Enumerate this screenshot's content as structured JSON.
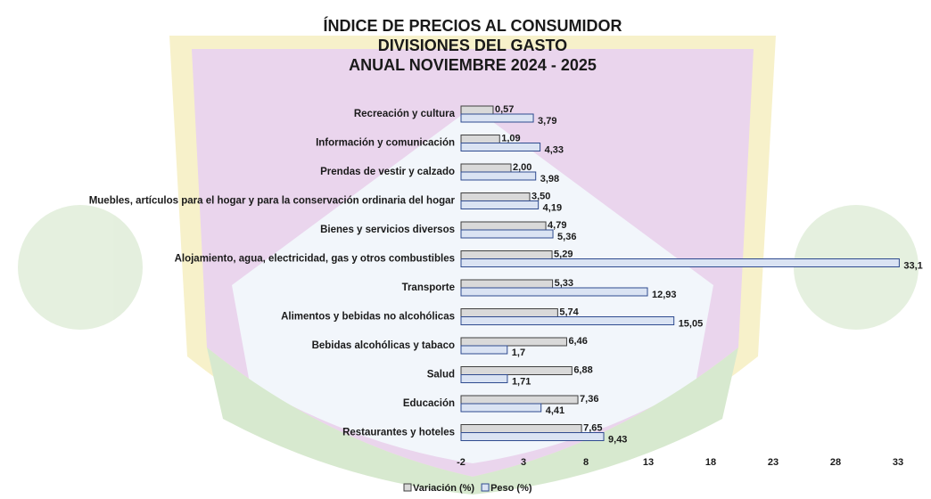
{
  "chart_data": {
    "type": "hbar",
    "title": [
      "ÍNDICE DE PRECIOS AL CONSUMIDOR",
      "DIVISIONES DEL GASTO",
      "ANUAL NOVIEMBRE 2024 - 2025"
    ],
    "categories": [
      "Recreación y cultura",
      "Información y comunicación",
      "Prendas de vestir y calzado",
      "Muebles, artículos para el hogar y para la conservación ordinaria del hogar",
      "Bienes y servicios diversos",
      "Alojamiento, agua, electricidad, gas y otros combustibles",
      "Transporte",
      "Alimentos y bebidas no alcohólicas",
      "Bebidas alcohólicas y tabaco",
      "Salud",
      "Educación",
      "Restaurantes y hoteles"
    ],
    "series": [
      {
        "name": "Variación (%)",
        "color": "#d9d9d9",
        "stroke": "#404040",
        "values": [
          0.57,
          1.09,
          2.0,
          3.5,
          4.79,
          5.29,
          5.33,
          5.74,
          6.46,
          6.88,
          7.36,
          7.65
        ],
        "value_labels": [
          "0,57",
          "1,09",
          "2,00",
          "3,50",
          "4,79",
          "5,29",
          "5,33",
          "5,74",
          "6,46",
          "6,88",
          "7,36",
          "7,65"
        ]
      },
      {
        "name": "Peso (%)",
        "color": "#dae3f3",
        "stroke": "#2f4b8f",
        "values": [
          3.79,
          4.33,
          3.98,
          4.19,
          5.36,
          33.1,
          12.93,
          15.05,
          1.7,
          1.71,
          4.41,
          9.43
        ],
        "value_labels": [
          "3,79",
          "4,33",
          "3,98",
          "4,19",
          "5,36",
          "33,1",
          "12,93",
          "15,05",
          "1,7",
          "1,71",
          "4,41",
          "9,43"
        ]
      }
    ],
    "xlim": [
      -2,
      33
    ],
    "xticks": [
      -2,
      3,
      8,
      13,
      18,
      23,
      28,
      33
    ],
    "legend": "bottom"
  }
}
